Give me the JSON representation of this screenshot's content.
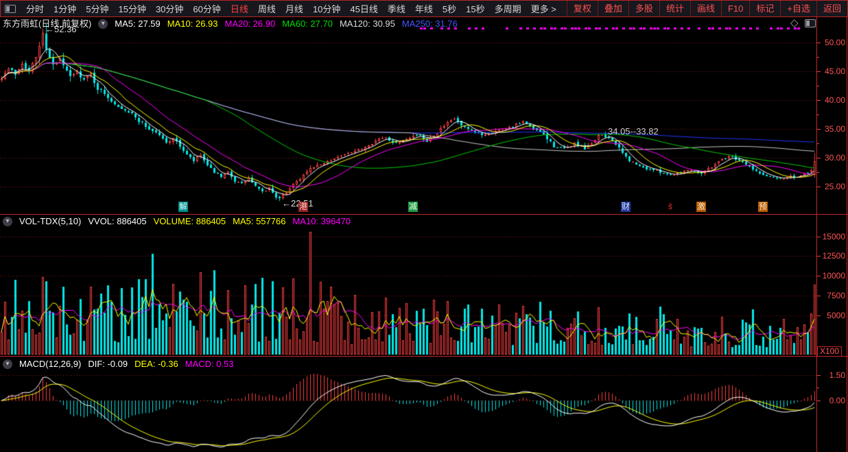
{
  "menu_bar": {
    "periods": [
      "分时",
      "1分钟",
      "5分钟",
      "15分钟",
      "30分钟",
      "60分钟",
      "日线",
      "周线",
      "月线",
      "10分钟",
      "45日线",
      "季线",
      "年线",
      "5秒",
      "15秒",
      "多周期",
      "更多 >"
    ],
    "active_period": "日线",
    "right_actions": [
      "复权",
      "叠加",
      "多股",
      "统计",
      "画线",
      "F10",
      "标记",
      "+自选",
      "返回"
    ]
  },
  "main_chart": {
    "title": "东方雨虹(日线,前复权)",
    "indicators": [
      {
        "text": "MA5: 27.59",
        "color": "#ffffff"
      },
      {
        "text": "MA10: 26.93",
        "color": "#ffff00"
      },
      {
        "text": "MA20: 26.90",
        "color": "#ff00ff"
      },
      {
        "text": "MA60: 27.70",
        "color": "#00dd00"
      },
      {
        "text": "MA120: 30.95",
        "color": "#dddddd"
      },
      {
        "text": "MA250: 31.76",
        "color": "#4455ff"
      }
    ],
    "y_tick_values": [
      50,
      45,
      40,
      35,
      30,
      25
    ],
    "y_tick_labels": [
      "50.00",
      "45.00",
      "40.00",
      "35.00",
      "30.00",
      "25.00"
    ],
    "y_minor_ticks": [
      47.5,
      42.5,
      37.5,
      32.5,
      27.5
    ],
    "annotations": [
      {
        "text": "←52.36",
        "day": 12,
        "price": 52.36,
        "color": "#dddddd"
      },
      {
        "text": "←22.51",
        "day": 81,
        "price": 22.2,
        "color": "#dddddd"
      },
      {
        "text": "34.05--33.82",
        "day": 176,
        "price": 34.6,
        "color": "#cccccc"
      }
    ],
    "event_markers": [
      {
        "text": "解",
        "day": 53,
        "bg": "#008b8b",
        "fg": "#e0ffff"
      },
      {
        "text": "港",
        "day": 88,
        "bg": "#992222",
        "fg": "#ffd0d0"
      },
      {
        "text": "减",
        "day": 120,
        "bg": "#1f9944",
        "fg": "#eaffea"
      },
      {
        "text": "财",
        "day": 182,
        "bg": "#223a99",
        "fg": "#dde6ff"
      },
      {
        "text": "ŝ",
        "day": 195,
        "bg": "#000000",
        "fg": "#ff3030"
      },
      {
        "text": "激",
        "day": 204,
        "bg": "#b35900",
        "fg": "#ffe8cc"
      },
      {
        "text": "预",
        "day": 222,
        "bg": "#b35900",
        "fg": "#ffe8cc"
      }
    ],
    "marker_days": [
      122,
      123,
      125,
      128,
      130,
      132,
      136,
      138,
      140,
      147,
      151,
      153,
      155,
      157,
      158,
      160,
      161,
      163,
      164,
      166,
      167,
      168,
      170,
      171,
      173,
      174,
      176,
      178,
      179,
      181,
      183,
      184,
      186,
      187,
      189,
      190,
      191,
      193,
      194,
      196,
      198,
      200,
      203,
      206,
      207,
      209,
      211,
      212,
      214,
      216,
      218,
      220,
      224,
      226,
      227,
      229,
      231,
      232
    ]
  },
  "volume_pane": {
    "header": [
      {
        "text": "VOL-TDX(5,10)",
        "color": "#ffffff"
      },
      {
        "text": "VVOL: 886405",
        "color": "#ffffff"
      },
      {
        "text": "VOLUME: 886405",
        "color": "#ffff00"
      },
      {
        "text": "MA5: 557766",
        "color": "#ffff00"
      },
      {
        "text": "MA10: 396470",
        "color": "#ff00ff"
      }
    ],
    "y_tick_values": [
      15000,
      12500,
      10000,
      7500,
      5000
    ],
    "y_tick_labels": [
      "15000",
      "12500",
      "10000",
      "7500",
      "5000"
    ],
    "unit": "X100"
  },
  "macd_pane": {
    "header": [
      {
        "text": "MACD(12,26,9)",
        "color": "#ffffff"
      },
      {
        "text": "DIF: -0.09",
        "color": "#ffffff"
      },
      {
        "text": "DEA: -0.36",
        "color": "#ffff00"
      },
      {
        "text": "MACD: 0.53",
        "color": "#ff00ff"
      }
    ],
    "y_tick_values": [
      1.5,
      0
    ],
    "y_tick_labels": [
      "1.50",
      "0.00"
    ],
    "y_minor_ticks": [
      0.75
    ]
  },
  "colors": {
    "up": "#ff4040",
    "down": "#00e8e8",
    "grid": "#9a1f1f",
    "axis_text": "#ff5555",
    "chrome": "#c22828",
    "ma5": "#ffffff",
    "ma10": "#ffff00",
    "ma20": "#ff00ff",
    "ma60": "#00cc00",
    "ma120": "#c8c8c8",
    "ma250": "#2233ff",
    "vol_ma5": "#ffff00",
    "vol_ma10": "#ff00ff",
    "dif": "#ffffff",
    "dea": "#ffff00",
    "marker": "#f000f0"
  },
  "chart_data": {
    "type": "candlestick",
    "symbol": "东方雨虹",
    "period": "日线 前复权",
    "days": 238,
    "seed": 7,
    "ylim": [
      22.2,
      52.4
    ],
    "price_keypoints": [
      [
        0,
        44.0
      ],
      [
        2,
        45.5
      ],
      [
        4,
        44.5
      ],
      [
        6,
        46.5
      ],
      [
        8,
        45.0
      ],
      [
        10,
        47.5
      ],
      [
        12,
        51.5
      ],
      [
        13,
        49.0
      ],
      [
        15,
        46.0
      ],
      [
        17,
        47.0
      ],
      [
        20,
        44.0
      ],
      [
        22,
        45.0
      ],
      [
        24,
        43.5
      ],
      [
        26,
        44.5
      ],
      [
        28,
        42.0
      ],
      [
        31,
        40.5
      ],
      [
        34,
        39.0
      ],
      [
        37,
        38.0
      ],
      [
        40,
        36.5
      ],
      [
        43,
        35.0
      ],
      [
        46,
        34.0
      ],
      [
        48,
        32.5
      ],
      [
        50,
        33.5
      ],
      [
        52,
        32.0
      ],
      [
        54,
        30.5
      ],
      [
        56,
        29.5
      ],
      [
        58,
        30.5
      ],
      [
        60,
        28.5
      ],
      [
        62,
        27.5
      ],
      [
        64,
        26.5
      ],
      [
        66,
        27.5
      ],
      [
        68,
        26.0
      ],
      [
        70,
        25.5
      ],
      [
        72,
        26.5
      ],
      [
        74,
        25.0
      ],
      [
        76,
        24.0
      ],
      [
        78,
        24.8
      ],
      [
        80,
        23.3
      ],
      [
        81,
        22.9
      ],
      [
        83,
        24.0
      ],
      [
        85,
        25.5
      ],
      [
        88,
        27.0
      ],
      [
        91,
        28.5
      ],
      [
        94,
        29.0
      ],
      [
        97,
        30.0
      ],
      [
        100,
        30.5
      ],
      [
        103,
        31.0
      ],
      [
        106,
        32.0
      ],
      [
        109,
        33.0
      ],
      [
        112,
        33.5
      ],
      [
        115,
        32.5
      ],
      [
        118,
        33.5
      ],
      [
        121,
        34.0
      ],
      [
        124,
        33.0
      ],
      [
        127,
        34.5
      ],
      [
        130,
        36.0
      ],
      [
        132,
        36.8
      ],
      [
        134,
        35.5
      ],
      [
        137,
        34.5
      ],
      [
        140,
        34.0
      ],
      [
        143,
        34.5
      ],
      [
        146,
        35.0
      ],
      [
        149,
        35.5
      ],
      [
        152,
        36.2
      ],
      [
        155,
        35.0
      ],
      [
        158,
        34.0
      ],
      [
        161,
        32.0
      ],
      [
        164,
        31.5
      ],
      [
        167,
        32.5
      ],
      [
        170,
        31.5
      ],
      [
        172,
        32.5
      ],
      [
        174,
        33.9
      ],
      [
        176,
        33.6
      ],
      [
        178,
        33.2
      ],
      [
        180,
        31.5
      ],
      [
        183,
        29.5
      ],
      [
        186,
        28.5
      ],
      [
        189,
        28.0
      ],
      [
        192,
        27.5
      ],
      [
        195,
        27.0
      ],
      [
        198,
        27.5
      ],
      [
        201,
        28.0
      ],
      [
        204,
        27.3
      ],
      [
        207,
        28.5
      ],
      [
        210,
        29.8
      ],
      [
        213,
        30.2
      ],
      [
        216,
        29.3
      ],
      [
        219,
        28.0
      ],
      [
        222,
        27.0
      ],
      [
        225,
        26.6
      ],
      [
        228,
        26.4
      ],
      [
        230,
        26.8
      ],
      [
        232,
        26.5
      ],
      [
        234,
        27.2
      ],
      [
        236,
        27.8
      ],
      [
        237,
        29.4
      ]
    ],
    "high_marker": {
      "day": 12,
      "price": 52.36
    },
    "low_marker": {
      "day": 81,
      "price": 22.51
    },
    "gap_marker": {
      "day": 176,
      "from": 34.05,
      "to": 33.82
    },
    "ma_last": {
      "MA5": 27.59,
      "MA10": 26.93,
      "MA20": 26.9,
      "MA60": 27.7,
      "MA120": 30.95,
      "MA250": 31.76
    },
    "volume": {
      "unit": "X100",
      "vvol": 886405,
      "volume": 886405,
      "ma5": 557766,
      "ma10": 396470,
      "ylim": [
        0,
        16000
      ],
      "spikes": [
        [
          12,
          9800
        ],
        [
          44,
          12800
        ],
        [
          50,
          9000
        ],
        [
          58,
          10400
        ],
        [
          66,
          8200
        ],
        [
          76,
          9700
        ],
        [
          82,
          8500
        ],
        [
          90,
          15600
        ],
        [
          93,
          9200
        ],
        [
          96,
          8600
        ],
        [
          103,
          7600
        ],
        [
          112,
          7200
        ],
        [
          118,
          6500
        ],
        [
          130,
          6800
        ],
        [
          140,
          5800
        ],
        [
          152,
          6200
        ],
        [
          160,
          5600
        ],
        [
          168,
          5500
        ],
        [
          174,
          6000
        ],
        [
          183,
          5200
        ],
        [
          210,
          4800
        ],
        [
          216,
          4400
        ],
        [
          228,
          4500
        ],
        [
          236,
          5200
        ],
        [
          237,
          8864
        ]
      ]
    },
    "macd": {
      "params": [
        12,
        26,
        9
      ],
      "dif": -0.09,
      "dea": -0.36,
      "macd": 0.53,
      "ylim": [
        -2.9,
        1.6
      ]
    }
  }
}
